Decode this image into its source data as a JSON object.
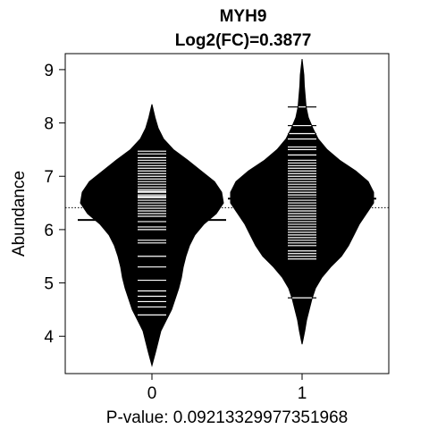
{
  "chart_data": {
    "type": "beanplot",
    "title": "MYH9",
    "subtitle": "Log2(FC)=0.3877",
    "ylabel": "Abundance",
    "xlabel": "P-value: 0.09213329977351968",
    "categories": [
      "0",
      "1"
    ],
    "ylim": [
      3.3,
      9.3
    ],
    "yticks": [
      4,
      5,
      6,
      7,
      8,
      9
    ],
    "overall_mean": 6.41,
    "grid": false,
    "legend": "none",
    "colors": {
      "bean": "#000000",
      "obs": "#ffffff",
      "line": "#000000"
    },
    "beans": [
      {
        "group": "0",
        "mean": 6.18,
        "density": [
          [
            3.45,
            0.0
          ],
          [
            3.7,
            0.04
          ],
          [
            3.9,
            0.07
          ],
          [
            4.1,
            0.1
          ],
          [
            4.3,
            0.16
          ],
          [
            4.5,
            0.22
          ],
          [
            4.7,
            0.26
          ],
          [
            4.9,
            0.3
          ],
          [
            5.1,
            0.33
          ],
          [
            5.3,
            0.35
          ],
          [
            5.5,
            0.38
          ],
          [
            5.7,
            0.42
          ],
          [
            5.9,
            0.48
          ],
          [
            6.1,
            0.58
          ],
          [
            6.3,
            0.72
          ],
          [
            6.5,
            0.8
          ],
          [
            6.7,
            0.78
          ],
          [
            6.9,
            0.7
          ],
          [
            7.1,
            0.55
          ],
          [
            7.3,
            0.4
          ],
          [
            7.5,
            0.24
          ],
          [
            7.7,
            0.13
          ],
          [
            7.9,
            0.07
          ],
          [
            8.1,
            0.035
          ],
          [
            8.35,
            0.0
          ]
        ],
        "observations": [
          4.4,
          4.55,
          4.65,
          4.75,
          4.85,
          5.05,
          5.3,
          5.5,
          5.75,
          5.8,
          6.0,
          6.05,
          6.15,
          6.25,
          6.3,
          6.35,
          6.4,
          6.45,
          6.5,
          6.55,
          6.6,
          6.62,
          6.65,
          6.7,
          6.72,
          6.75,
          6.8,
          6.85,
          6.9,
          6.95,
          7.0,
          7.05,
          7.1,
          7.15,
          7.2,
          7.25,
          7.3,
          7.35,
          7.42,
          7.47
        ]
      },
      {
        "group": "1",
        "mean": 6.58,
        "density": [
          [
            3.85,
            0.0
          ],
          [
            4.1,
            0.03
          ],
          [
            4.3,
            0.05
          ],
          [
            4.5,
            0.08
          ],
          [
            4.7,
            0.11
          ],
          [
            4.9,
            0.15
          ],
          [
            5.1,
            0.22
          ],
          [
            5.3,
            0.32
          ],
          [
            5.5,
            0.44
          ],
          [
            5.7,
            0.52
          ],
          [
            5.9,
            0.58
          ],
          [
            6.1,
            0.64
          ],
          [
            6.3,
            0.72
          ],
          [
            6.5,
            0.8
          ],
          [
            6.7,
            0.8
          ],
          [
            6.9,
            0.74
          ],
          [
            7.1,
            0.6
          ],
          [
            7.3,
            0.42
          ],
          [
            7.5,
            0.28
          ],
          [
            7.7,
            0.18
          ],
          [
            7.9,
            0.12
          ],
          [
            8.1,
            0.07
          ],
          [
            8.3,
            0.045
          ],
          [
            8.5,
            0.035
          ],
          [
            8.7,
            0.025
          ],
          [
            8.9,
            0.02
          ],
          [
            9.2,
            0.0
          ]
        ],
        "observations": [
          4.72,
          5.45,
          5.5,
          5.55,
          5.6,
          5.7,
          5.75,
          5.8,
          5.85,
          5.9,
          5.95,
          6.0,
          6.05,
          6.1,
          6.15,
          6.2,
          6.25,
          6.3,
          6.35,
          6.4,
          6.45,
          6.5,
          6.55,
          6.6,
          6.65,
          6.7,
          6.75,
          6.8,
          6.85,
          6.9,
          6.95,
          7.0,
          7.05,
          7.1,
          7.15,
          7.2,
          7.25,
          7.3,
          7.4,
          7.5,
          7.55,
          7.7,
          7.8,
          7.95,
          8.3
        ]
      }
    ]
  }
}
